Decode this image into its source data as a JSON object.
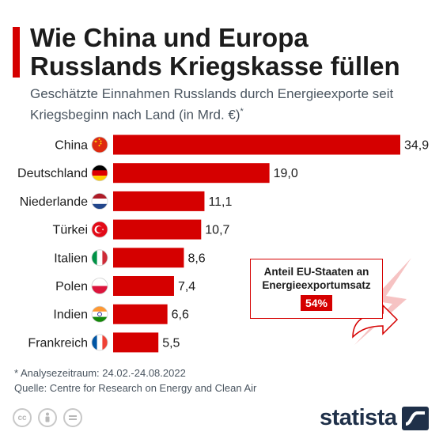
{
  "header": {
    "title": "Wie China und Europa Russlands Kriegskasse füllen",
    "subtitle": "Geschätzte Einnahmen Russlands durch Energieexporte seit Kriegsbeginn nach Land (in Mrd. €)",
    "subtitle_mark": "*"
  },
  "chart_data": {
    "type": "bar",
    "orientation": "horizontal",
    "title": "Wie China und Europa Russlands Kriegskasse füllen",
    "subtitle": "Geschätzte Einnahmen Russlands durch Energieexporte seit Kriegsbeginn nach Land (in Mrd. €)*",
    "categories": [
      "China",
      "Deutschland",
      "Niederlande",
      "Türkei",
      "Italien",
      "Polen",
      "Indien",
      "Frankreich"
    ],
    "values": [
      34.9,
      19.0,
      11.1,
      10.7,
      8.6,
      7.4,
      6.6,
      5.5
    ],
    "value_labels": [
      "34,9",
      "19,0",
      "11,1",
      "10,7",
      "8,6",
      "7,4",
      "6,6",
      "5,5"
    ],
    "xlim": [
      0,
      34.9
    ],
    "grid": false,
    "bar_color": "#d50000"
  },
  "flags": [
    "china-flag-icon",
    "germany-flag-icon",
    "netherlands-flag-icon",
    "turkey-flag-icon",
    "italy-flag-icon",
    "poland-flag-icon",
    "india-flag-icon",
    "france-flag-icon"
  ],
  "callout": {
    "text": "Anteil EU-Staaten an Energieexportumsatz",
    "value": "54%"
  },
  "footer": {
    "note": "* Analysezeitraum: 24.02.-24.08.2022",
    "source": "Quelle: Centre for Research on Energy and Clean Air",
    "brand": "statista",
    "license_icons": [
      "cc-icon",
      "attribution-icon",
      "no-derivatives-icon"
    ]
  },
  "colors": {
    "accent": "#d50000",
    "text": "#1c1c1c",
    "brand": "#1f3049"
  }
}
